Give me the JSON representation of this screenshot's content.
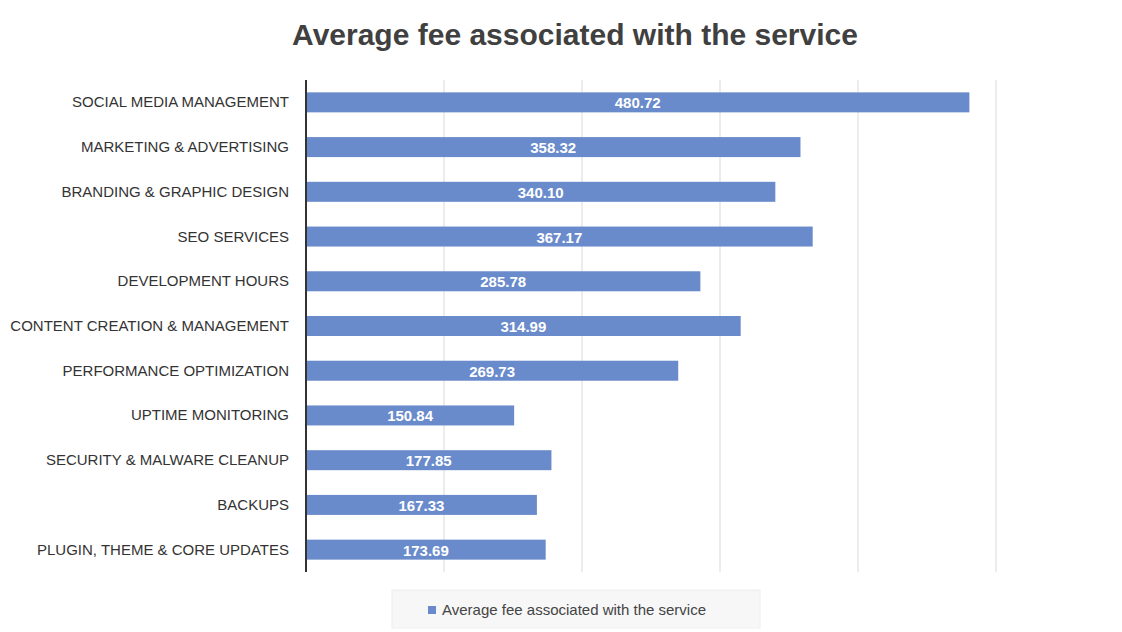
{
  "chart_data": {
    "type": "bar",
    "orientation": "horizontal",
    "title": "Average fee associated with the service",
    "categories": [
      "SOCIAL MEDIA MANAGEMENT",
      "MARKETING & ADVERTISING",
      "BRANDING & GRAPHIC DESIGN",
      "SEO SERVICES",
      "DEVELOPMENT HOURS",
      "CONTENT CREATION & MANAGEMENT",
      "PERFORMANCE OPTIMIZATION",
      "UPTIME MONITORING",
      "SECURITY & MALWARE CLEANUP",
      "BACKUPS",
      "PLUGIN, THEME & CORE UPDATES"
    ],
    "series": [
      {
        "name": "Average fee associated with the service",
        "color": "#6a8bcb",
        "values": [
          480.72,
          358.32,
          340.1,
          367.17,
          285.78,
          314.99,
          269.73,
          150.84,
          177.85,
          167.33,
          173.69
        ],
        "value_labels": [
          "480.72",
          "358.32",
          "340.10",
          "367.17",
          "285.78",
          "314.99",
          "269.73",
          "150.84",
          "177.85",
          "167.33",
          "173.69"
        ]
      }
    ],
    "xlim": [
      0,
      500
    ],
    "xticks": [
      0,
      100,
      200,
      300,
      400,
      500
    ],
    "grid": true,
    "tick_labels": false,
    "data_labels": true,
    "legend": "bottom"
  }
}
